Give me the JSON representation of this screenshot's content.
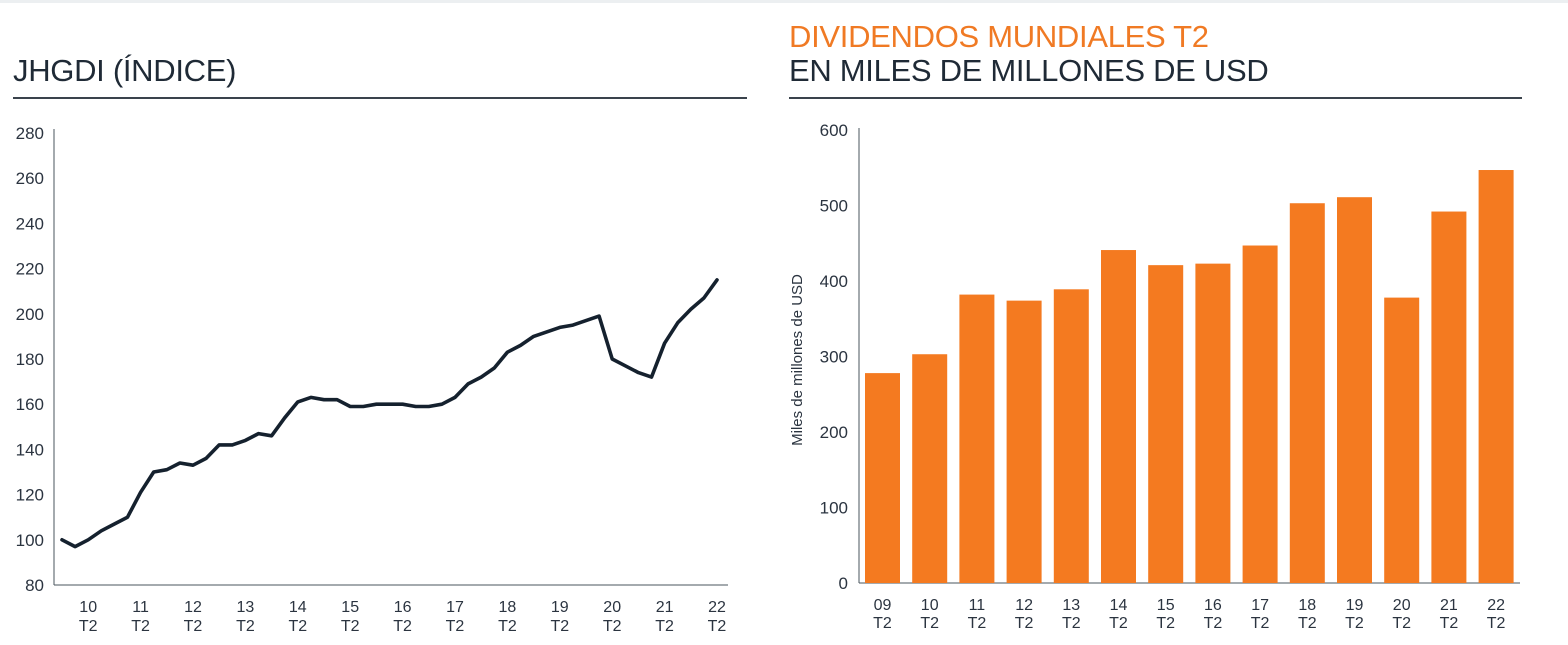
{
  "colors": {
    "line": "#15212e",
    "bar": "#f47a20",
    "accent_title": "#f07a24",
    "axis": "#4a545d",
    "text": "#2b3440"
  },
  "chart_data": [
    {
      "type": "line",
      "title": "JHGDI (ÍNDICE)",
      "xlabel": "",
      "ylabel": "",
      "ylim": [
        80,
        280
      ],
      "yticks": [
        "80",
        "100",
        "120",
        "140",
        "160",
        "180",
        "200",
        "220",
        "240",
        "260",
        "280"
      ],
      "xticks": [
        {
          "year": "10",
          "q": "T2",
          "pos": 2
        },
        {
          "year": "11",
          "q": "T2",
          "pos": 6
        },
        {
          "year": "12",
          "q": "T2",
          "pos": 10
        },
        {
          "year": "13",
          "q": "T2",
          "pos": 14
        },
        {
          "year": "14",
          "q": "T2",
          "pos": 18
        },
        {
          "year": "15",
          "q": "T2",
          "pos": 22
        },
        {
          "year": "16",
          "q": "T2",
          "pos": 26
        },
        {
          "year": "17",
          "q": "T2",
          "pos": 30
        },
        {
          "year": "18",
          "q": "T2",
          "pos": 34
        },
        {
          "year": "19",
          "q": "T2",
          "pos": 38
        },
        {
          "year": "20",
          "q": "T2",
          "pos": 42
        },
        {
          "year": "21",
          "q": "T2",
          "pos": 46
        },
        {
          "year": "22",
          "q": "T2",
          "pos": 50
        }
      ],
      "series": [
        {
          "name": "JHGDI",
          "values": [
            100,
            97,
            100,
            104,
            107,
            110,
            121,
            130,
            131,
            134,
            133,
            136,
            142,
            142,
            144,
            147,
            146,
            154,
            161,
            163,
            162,
            162,
            159,
            159,
            160,
            160,
            160,
            159,
            159,
            160,
            163,
            169,
            172,
            176,
            183,
            186,
            190,
            192,
            194,
            195,
            197,
            199,
            180,
            177,
            174,
            172,
            187,
            196,
            202,
            207,
            215
          ]
        }
      ]
    },
    {
      "type": "bar",
      "title": "DIVIDENDOS MUNDIALES T2",
      "subtitle": "EN MILES DE MILLONES DE USD",
      "xlabel": "",
      "ylabel": "Miles de millones de USD",
      "ylim": [
        0,
        600
      ],
      "yticks": [
        "0",
        "100",
        "200",
        "300",
        "400",
        "500",
        "600"
      ],
      "categories": [
        {
          "year": "09",
          "q": "T2"
        },
        {
          "year": "10",
          "q": "T2"
        },
        {
          "year": "11",
          "q": "T2"
        },
        {
          "year": "12",
          "q": "T2"
        },
        {
          "year": "13",
          "q": "T2"
        },
        {
          "year": "14",
          "q": "T2"
        },
        {
          "year": "15",
          "q": "T2"
        },
        {
          "year": "16",
          "q": "T2"
        },
        {
          "year": "17",
          "q": "T2"
        },
        {
          "year": "18",
          "q": "T2"
        },
        {
          "year": "19",
          "q": "T2"
        },
        {
          "year": "20",
          "q": "T2"
        },
        {
          "year": "21",
          "q": "T2"
        },
        {
          "year": "22",
          "q": "T2"
        }
      ],
      "values": [
        278,
        303,
        382,
        374,
        389,
        441,
        421,
        423,
        447,
        503,
        511,
        378,
        492,
        547
      ]
    }
  ]
}
